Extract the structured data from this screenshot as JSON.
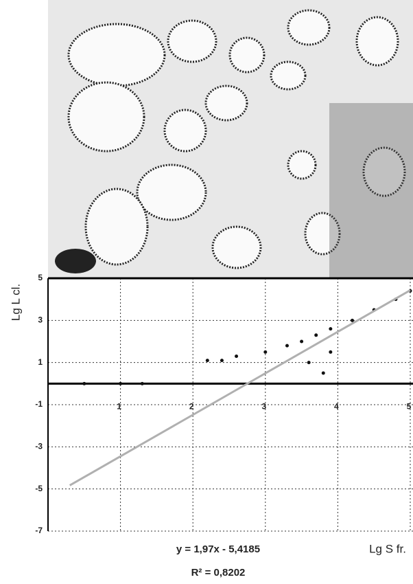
{
  "chart_data": {
    "type": "scatter",
    "xlabel": "Lg S fr.",
    "ylabel": "Lg L cl.",
    "annotations": [
      "y = 1,97x - 5,4185",
      "R² = 0,8202"
    ],
    "xlim": [
      0,
      5
    ],
    "ylim": [
      -7,
      5
    ],
    "xticks": [
      1,
      2,
      3,
      4,
      5
    ],
    "yticks": [
      5,
      3,
      1,
      -1,
      -3,
      -5,
      -7
    ],
    "grid": true,
    "series": [
      {
        "color": "#111111",
        "x": [
          0.5,
          1.0,
          1.3,
          2.2,
          2.4,
          2.6,
          3.0,
          3.3,
          3.5,
          3.7,
          3.9,
          4.2,
          4.5,
          4.8,
          5.0,
          3.6,
          3.8,
          3.9
        ],
        "values": [
          0,
          0,
          0,
          1.1,
          1.1,
          1.3,
          1.5,
          1.8,
          2.0,
          2.3,
          2.6,
          3.0,
          3.5,
          4.0,
          4.4,
          1.0,
          0.5,
          1.5
        ]
      }
    ],
    "trendline": {
      "color": "#b0b0b0",
      "x": [
        0.3,
        5
      ],
      "values": [
        -4.83,
        4.43
      ]
    }
  }
}
